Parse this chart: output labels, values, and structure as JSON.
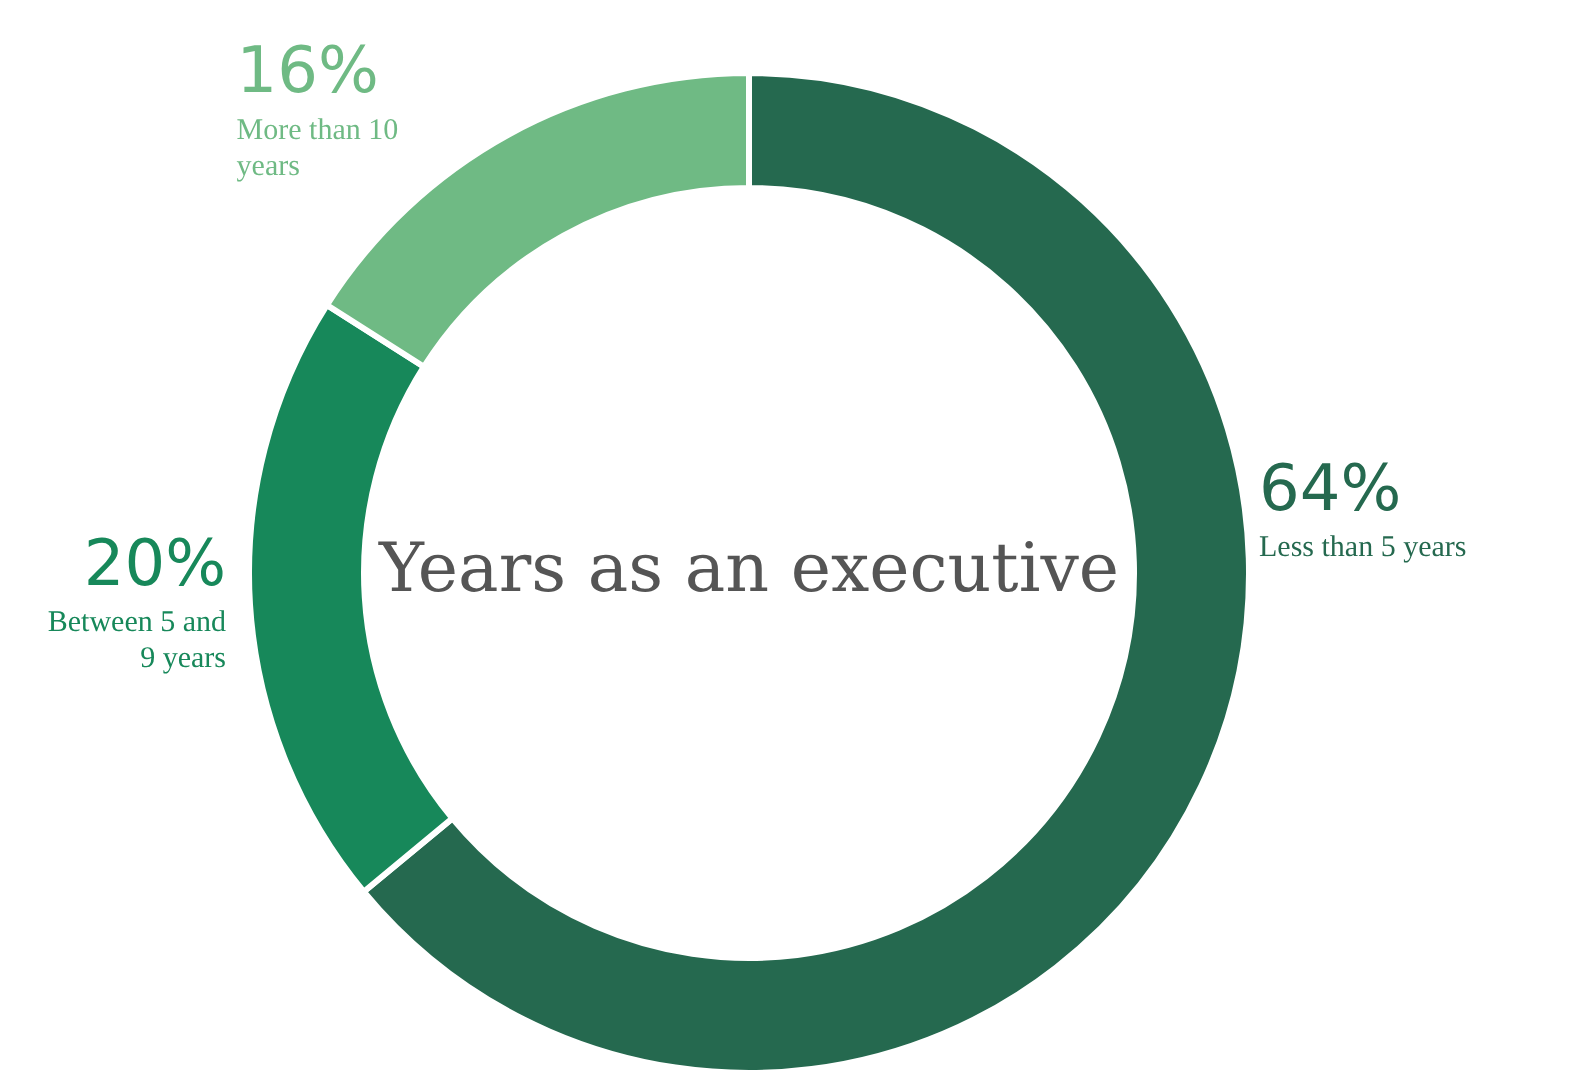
{
  "chart_data": {
    "type": "donut",
    "title": "Years as an executive",
    "categories": [
      "Less than 5 years",
      "Between 5 and 9 years",
      "More than 10 years"
    ],
    "values": [
      64,
      20,
      16
    ],
    "value_labels": [
      "64%",
      "20%",
      "16%"
    ],
    "colors": [
      "#25694f",
      "#17885a",
      "#6fba84"
    ],
    "legend": false
  }
}
